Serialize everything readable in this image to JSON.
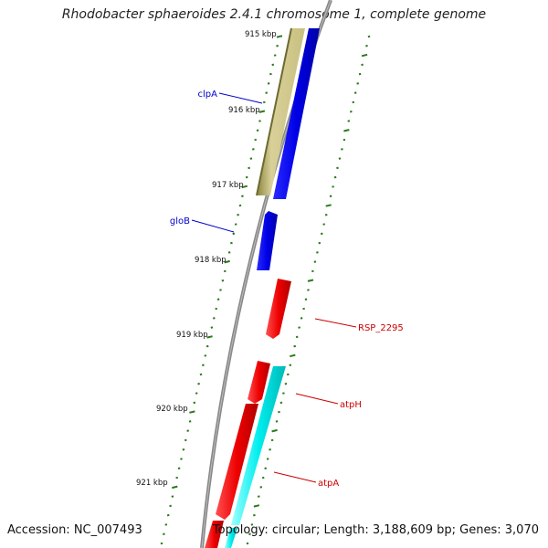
{
  "title": "Rhodobacter sphaeroides 2.4.1 chromosome 1, complete genome",
  "footer": {
    "accession": "Accession: NC_007493",
    "summary": "Topology: circular; Length: 3,188,609 bp; Genes: 3,070"
  },
  "ruler_labels": [
    "915 kbp",
    "916 kbp",
    "917 kbp",
    "918 kbp",
    "919 kbp",
    "920 kbp",
    "921 kbp"
  ],
  "colors": {
    "backbone": "#888888",
    "tick": "#2a7a1a",
    "forward_gene": "#0000ee",
    "reverse_gene": "#ee0000",
    "cyan_feature": "#00eeee",
    "tan_feature": "#c8c080",
    "forward_label": "#0000cc",
    "reverse_label": "#cc0000"
  },
  "genes": {
    "clpA": "clpA",
    "gloB": "gloB",
    "rsp2295": "RSP_2295",
    "atpH": "atpH",
    "atpA": "atpA"
  }
}
